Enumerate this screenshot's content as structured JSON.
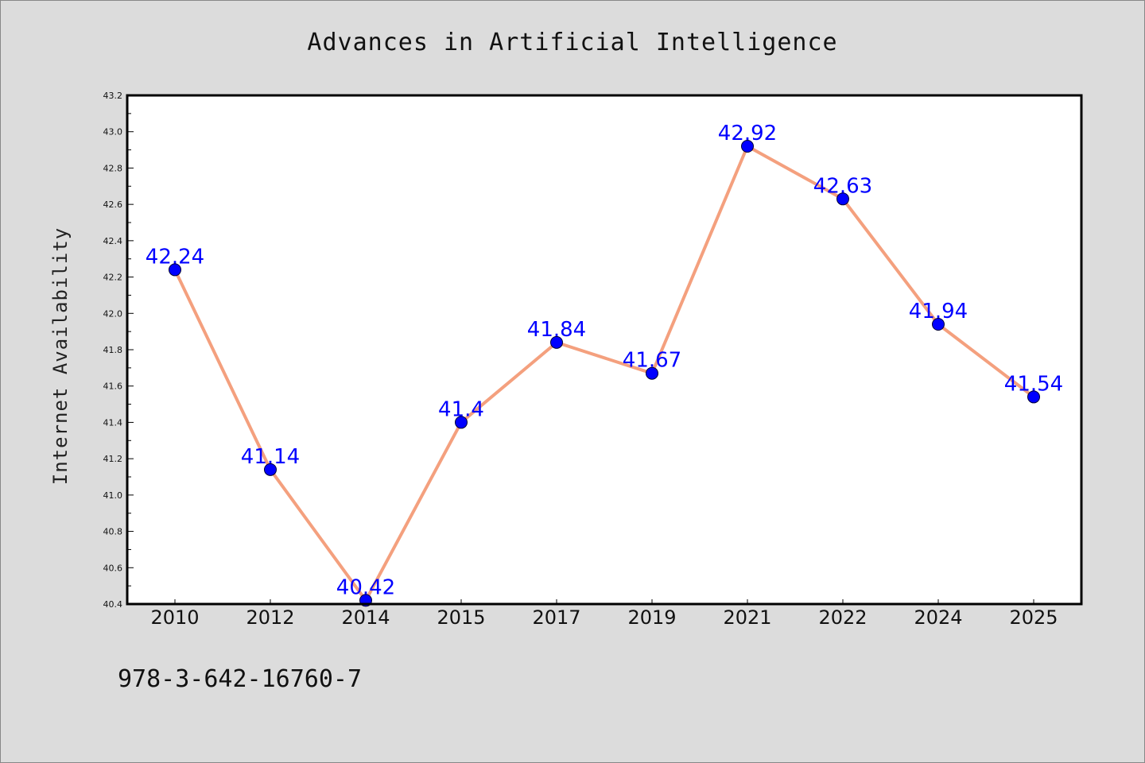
{
  "chart_data": {
    "type": "line",
    "title": "Advances in Artificial Intelligence",
    "xlabel": "",
    "ylabel": "Internet Availability",
    "categories": [
      "2010",
      "2012",
      "2014",
      "2015",
      "2017",
      "2019",
      "2021",
      "2022",
      "2024",
      "2025"
    ],
    "series": [
      {
        "values": [
          42.24,
          41.14,
          40.42,
          41.4,
          41.84,
          41.67,
          42.92,
          42.63,
          41.94,
          41.54
        ],
        "data_labels": [
          "42.24",
          "41.14",
          "40.42",
          "41.4",
          "41.84",
          "41.67",
          "42.92",
          "42.63",
          "41.94",
          "41.54"
        ]
      }
    ],
    "ylim": [
      40.4,
      43.2
    ],
    "yticks": [
      "40.4",
      "40.6",
      "40.8",
      "41.0",
      "41.2",
      "41.4",
      "41.6",
      "41.8",
      "42.0",
      "42.2",
      "42.4",
      "42.6",
      "42.8",
      "43.0",
      "43.2"
    ],
    "grid": false,
    "legend": "none",
    "colors": {
      "line": "#f4a07e",
      "marker": "#0000ff",
      "data_label": "#0000ff",
      "plot_background": "#ffffff",
      "figure_background": "#dcdcdc"
    }
  },
  "annotation": {
    "isbn": "978-3-642-16760-7"
  }
}
